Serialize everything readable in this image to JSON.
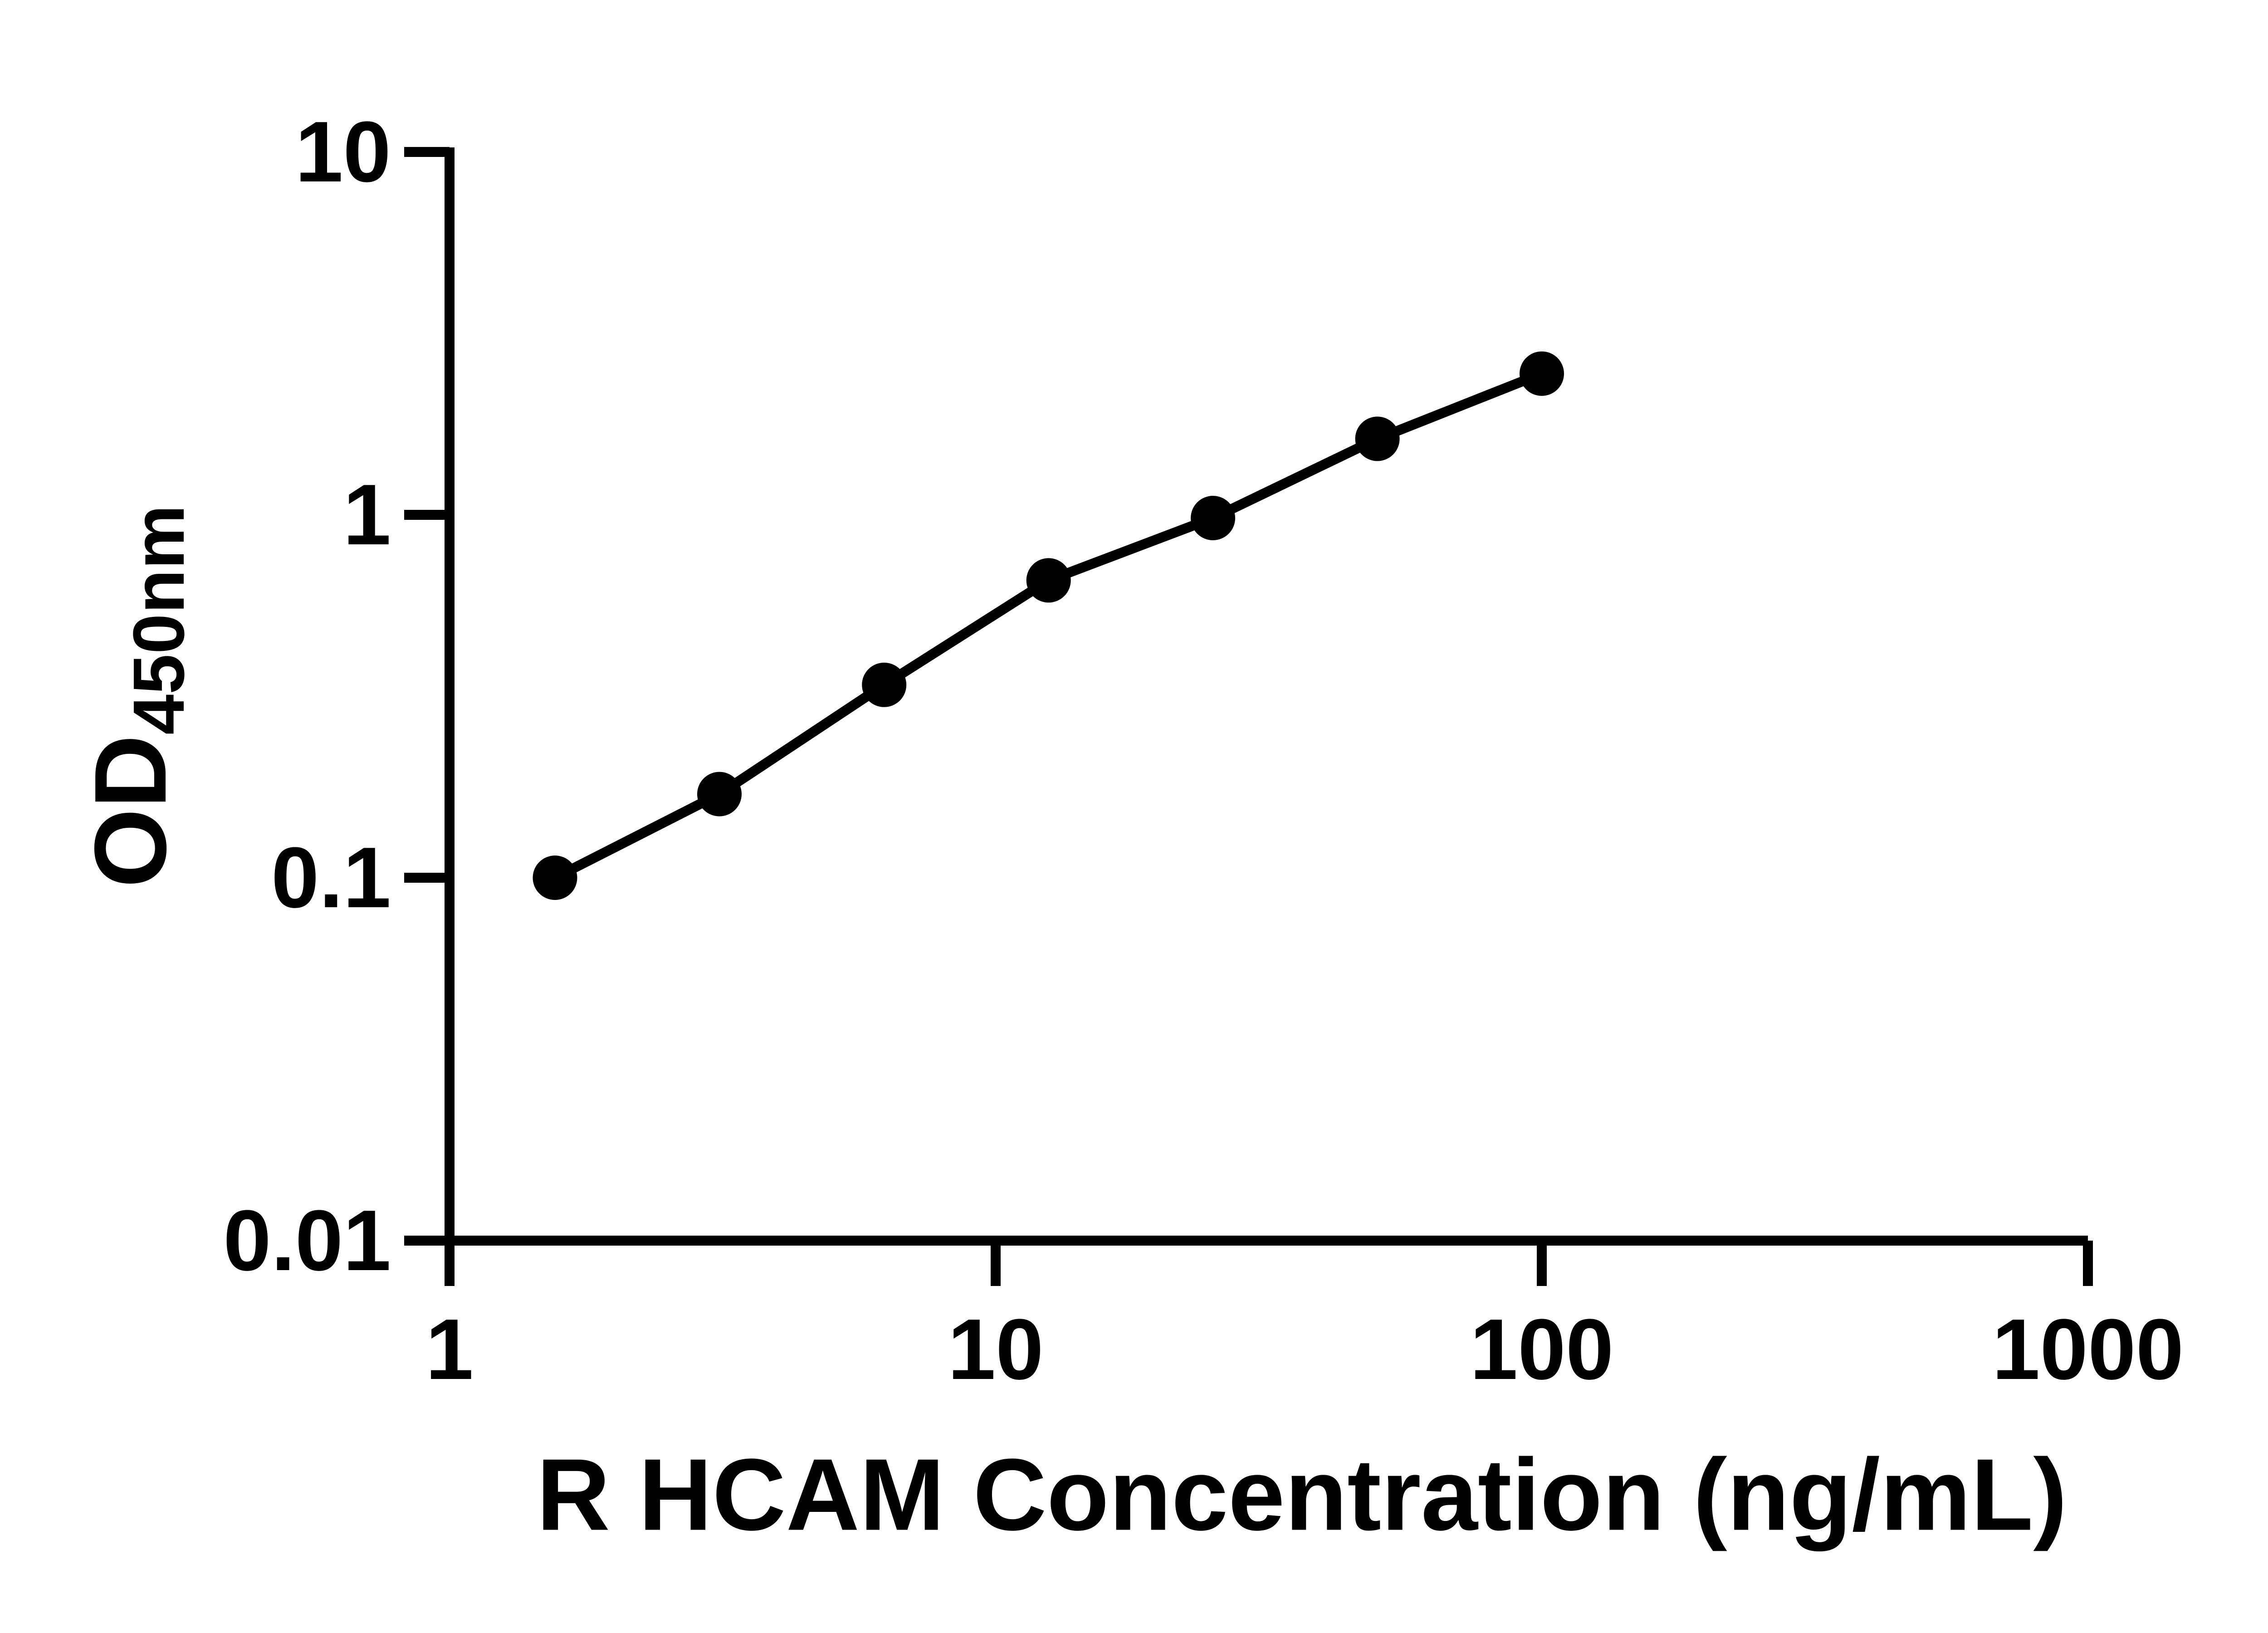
{
  "figure": {
    "background_color": "#ffffff"
  },
  "chart_data": {
    "type": "scatter",
    "title": "",
    "xlabel": "R HCAM Concentration (ng/mL)",
    "ylabel_main": "OD",
    "ylabel_sub": "450nm",
    "x_scale": "log",
    "y_scale": "log",
    "xlim": [
      1,
      1000
    ],
    "ylim": [
      0.01,
      10
    ],
    "grid": "off",
    "legend": "none",
    "axis_color": "#000000",
    "marker_color": "#000000",
    "line_color": "#000000",
    "x_ticks": [
      {
        "value": 1,
        "label": "1"
      },
      {
        "value": 10,
        "label": "10"
      },
      {
        "value": 100,
        "label": "100"
      },
      {
        "value": 1000,
        "label": "1000"
      }
    ],
    "y_ticks": [
      {
        "value": 10,
        "label": "10"
      },
      {
        "value": 1,
        "label": "1"
      },
      {
        "value": 0.1,
        "label": "0.1"
      },
      {
        "value": 0.01,
        "label": "0.01"
      }
    ],
    "series": [
      {
        "marker": "filled-circle",
        "color": "#000000",
        "x": [
          1.56,
          3.12,
          6.25,
          12.5,
          25,
          50,
          100
        ],
        "y": [
          0.1,
          0.17,
          0.34,
          0.66,
          0.98,
          1.62,
          2.45
        ]
      }
    ]
  }
}
